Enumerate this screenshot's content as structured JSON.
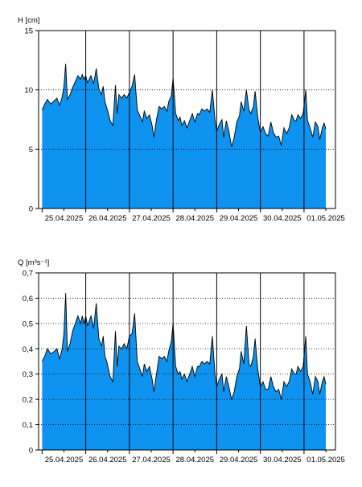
{
  "chart_data": [
    {
      "type": "area",
      "ylabel": "H [cm]",
      "ylim": [
        0,
        15
      ],
      "yticks": [
        0,
        5,
        10,
        15
      ],
      "yticks_text": [
        "0",
        "5",
        "10",
        "15"
      ],
      "gridlines": [
        5,
        10
      ],
      "grid": "dotted horizontal at 5 and 10, solid vertical at day boundaries",
      "xlim": [
        -0.08,
        6.72
      ],
      "day_labels": [
        "25.04.2025",
        "26.04.2025",
        "27.04.2025",
        "28.04.2025",
        "29.04.2025",
        "30.04.2025",
        "01.05.2025"
      ],
      "fill_color": "#0f93f0",
      "series": [
        {
          "x": [
            0.0,
            0.06,
            0.12,
            0.2,
            0.28,
            0.34,
            0.4,
            0.46,
            0.5,
            0.54,
            0.58,
            0.64,
            0.7,
            0.76,
            0.82,
            0.88,
            0.92,
            0.96,
            1.0,
            1.04,
            1.08,
            1.12,
            1.18,
            1.24,
            1.3,
            1.36,
            1.4,
            1.44,
            1.48,
            1.52,
            1.56,
            1.62,
            1.68,
            1.72,
            1.76,
            1.82,
            1.88,
            1.94,
            2.0,
            2.06,
            2.12,
            2.18,
            2.24,
            2.3,
            2.34,
            2.4,
            2.46,
            2.52,
            2.56,
            2.62,
            2.68,
            2.74,
            2.8,
            2.86,
            2.9,
            2.96,
            3.0,
            3.06,
            3.12,
            3.16,
            3.2,
            3.26,
            3.32,
            3.38,
            3.44,
            3.5,
            3.56,
            3.6,
            3.66,
            3.72,
            3.78,
            3.84,
            3.9,
            3.96,
            4.0,
            4.06,
            4.12,
            4.16,
            4.22,
            4.28,
            4.34,
            4.4,
            4.46,
            4.52,
            4.56,
            4.62,
            4.68,
            4.74,
            4.78,
            4.84,
            4.88,
            4.94,
            5.0,
            5.06,
            5.12,
            5.18,
            5.24,
            5.3,
            5.36,
            5.42,
            5.48,
            5.54,
            5.6,
            5.66,
            5.72,
            5.78,
            5.82,
            5.86,
            5.92,
            5.98,
            6.04,
            6.08,
            6.14,
            6.2,
            6.26,
            6.32,
            6.36,
            6.42,
            6.46,
            6.5
          ],
          "values": [
            8.3,
            8.8,
            9.2,
            8.8,
            9.1,
            9.3,
            8.7,
            9.4,
            10.3,
            12.2,
            9.2,
            9.6,
            10.2,
            10.7,
            11.2,
            10.9,
            11.3,
            10.9,
            11.2,
            10.6,
            10.9,
            11.2,
            10.5,
            11.8,
            10.1,
            9.6,
            10.3,
            9.0,
            8.5,
            8.0,
            7.4,
            7.0,
            10.4,
            8.0,
            9.6,
            9.3,
            9.6,
            9.3,
            9.8,
            10.3,
            11.3,
            8.3,
            7.8,
            7.3,
            8.2,
            7.6,
            7.9,
            7.0,
            6.0,
            7.5,
            8.6,
            8.4,
            8.6,
            8.2,
            9.0,
            9.5,
            11.0,
            8.0,
            7.4,
            7.7,
            7.0,
            7.4,
            6.8,
            7.4,
            8.0,
            7.3,
            8.0,
            7.9,
            8.4,
            8.2,
            8.4,
            8.1,
            10.0,
            7.5,
            6.5,
            7.1,
            7.5,
            6.0,
            7.4,
            6.5,
            5.2,
            6.0,
            7.3,
            7.8,
            9.0,
            8.2,
            10.0,
            8.3,
            8.0,
            8.6,
            9.9,
            7.7,
            6.4,
            6.9,
            6.3,
            6.1,
            7.3,
            6.4,
            6.0,
            6.1,
            5.3,
            6.8,
            6.3,
            6.8,
            7.9,
            7.4,
            7.4,
            7.9,
            7.6,
            8.0,
            10.0,
            7.4,
            6.8,
            6.0,
            7.3,
            6.9,
            5.8,
            6.8,
            7.2,
            6.7
          ]
        }
      ]
    },
    {
      "type": "area",
      "ylabel": "Q [m³s⁻¹]",
      "ylim": [
        0,
        0.7
      ],
      "yticks": [
        0,
        0.1,
        0.2,
        0.3,
        0.4,
        0.5,
        0.6,
        0.7
      ],
      "yticks_text": [
        "0",
        "0,1",
        "0,2",
        "0,3",
        "0,4",
        "0,5",
        "0,6",
        "0,7"
      ],
      "gridlines": [
        0.1,
        0.2,
        0.3,
        0.4,
        0.5,
        0.6
      ],
      "grid": "dotted horizontal at each tick, solid vertical at day boundaries",
      "xlim": [
        -0.08,
        6.72
      ],
      "day_labels": [
        "25.04.2025",
        "26.04.2025",
        "27.04.2025",
        "28.04.2025",
        "29.04.2025",
        "30.04.2025",
        "01.05.2025"
      ],
      "fill_color": "#0f93f0",
      "series": [
        {
          "x": [
            0.0,
            0.06,
            0.12,
            0.2,
            0.28,
            0.34,
            0.4,
            0.46,
            0.5,
            0.54,
            0.58,
            0.64,
            0.7,
            0.76,
            0.82,
            0.88,
            0.92,
            0.96,
            1.0,
            1.04,
            1.08,
            1.12,
            1.18,
            1.24,
            1.3,
            1.36,
            1.4,
            1.44,
            1.48,
            1.52,
            1.56,
            1.62,
            1.68,
            1.72,
            1.76,
            1.82,
            1.88,
            1.94,
            2.0,
            2.06,
            2.12,
            2.18,
            2.24,
            2.3,
            2.34,
            2.4,
            2.46,
            2.52,
            2.56,
            2.62,
            2.68,
            2.74,
            2.8,
            2.86,
            2.9,
            2.96,
            3.0,
            3.06,
            3.12,
            3.16,
            3.2,
            3.26,
            3.32,
            3.38,
            3.44,
            3.5,
            3.56,
            3.6,
            3.66,
            3.72,
            3.78,
            3.84,
            3.9,
            3.96,
            4.0,
            4.06,
            4.12,
            4.16,
            4.22,
            4.28,
            4.34,
            4.4,
            4.46,
            4.52,
            4.56,
            4.62,
            4.68,
            4.74,
            4.78,
            4.84,
            4.88,
            4.94,
            5.0,
            5.06,
            5.12,
            5.18,
            5.24,
            5.3,
            5.36,
            5.42,
            5.48,
            5.54,
            5.6,
            5.66,
            5.72,
            5.78,
            5.82,
            5.86,
            5.92,
            5.98,
            6.04,
            6.08,
            6.14,
            6.2,
            6.26,
            6.32,
            6.36,
            6.42,
            6.46,
            6.5
          ],
          "values": [
            0.35,
            0.37,
            0.4,
            0.38,
            0.39,
            0.4,
            0.36,
            0.4,
            0.46,
            0.62,
            0.39,
            0.42,
            0.47,
            0.5,
            0.53,
            0.5,
            0.53,
            0.5,
            0.53,
            0.49,
            0.51,
            0.53,
            0.48,
            0.58,
            0.44,
            0.41,
            0.45,
            0.37,
            0.35,
            0.32,
            0.29,
            0.27,
            0.47,
            0.33,
            0.41,
            0.4,
            0.42,
            0.4,
            0.45,
            0.46,
            0.54,
            0.35,
            0.32,
            0.29,
            0.34,
            0.31,
            0.33,
            0.28,
            0.23,
            0.3,
            0.37,
            0.36,
            0.37,
            0.35,
            0.39,
            0.43,
            0.5,
            0.33,
            0.3,
            0.31,
            0.28,
            0.3,
            0.27,
            0.3,
            0.33,
            0.29,
            0.33,
            0.33,
            0.35,
            0.34,
            0.35,
            0.34,
            0.45,
            0.3,
            0.25,
            0.28,
            0.3,
            0.23,
            0.29,
            0.25,
            0.2,
            0.23,
            0.29,
            0.32,
            0.39,
            0.34,
            0.49,
            0.34,
            0.33,
            0.37,
            0.44,
            0.32,
            0.25,
            0.27,
            0.24,
            0.24,
            0.29,
            0.25,
            0.23,
            0.24,
            0.2,
            0.27,
            0.25,
            0.27,
            0.32,
            0.3,
            0.3,
            0.33,
            0.31,
            0.33,
            0.45,
            0.3,
            0.27,
            0.22,
            0.29,
            0.27,
            0.22,
            0.27,
            0.29,
            0.26
          ]
        }
      ]
    }
  ]
}
